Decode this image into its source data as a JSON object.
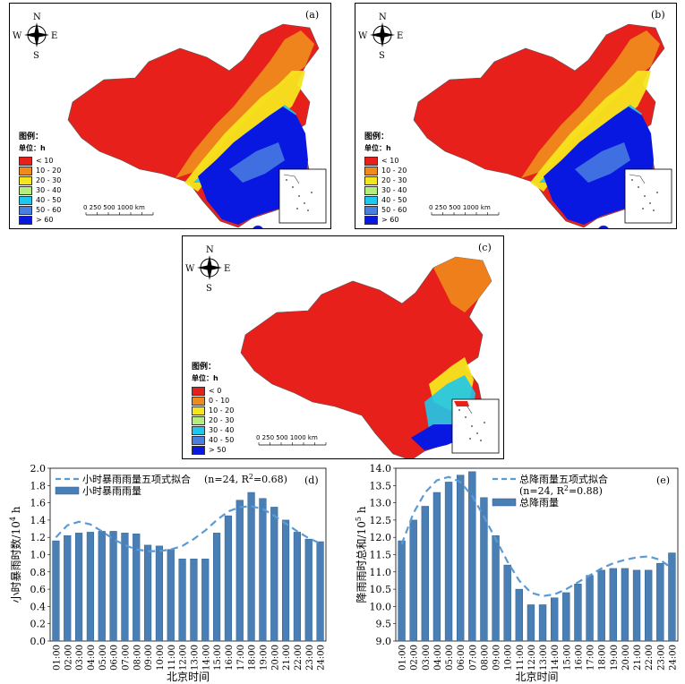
{
  "maps": [
    {
      "id": "a",
      "label": "(a)",
      "legend_title": "图例：",
      "unit": "单位：h",
      "legend": [
        {
          "text": "< 10",
          "color": "#e8201c"
        },
        {
          "text": "10 - 20",
          "color": "#f08a1c"
        },
        {
          "text": "20 - 30",
          "color": "#f5e51e"
        },
        {
          "text": "30 - 40",
          "color": "#b5ec7e"
        },
        {
          "text": "40 - 50",
          "color": "#1ec8ec"
        },
        {
          "text": "50 - 60",
          "color": "#4a7fe0"
        },
        {
          "text": "> 60",
          "color": "#0818e0"
        }
      ],
      "scale": "0  250 500      1000 km"
    },
    {
      "id": "b",
      "label": "(b)",
      "legend_title": "图例：",
      "unit": "单位：h",
      "legend": [
        {
          "text": "< 10",
          "color": "#e8201c"
        },
        {
          "text": "10 - 20",
          "color": "#f08a1c"
        },
        {
          "text": "20 - 30",
          "color": "#f5e51e"
        },
        {
          "text": "30 - 40",
          "color": "#b5ec7e"
        },
        {
          "text": "40 - 50",
          "color": "#1ec8ec"
        },
        {
          "text": "50 - 60",
          "color": "#4a7fe0"
        },
        {
          "text": "> 60",
          "color": "#0818e0"
        }
      ],
      "scale": "0  250 500      1000 km"
    },
    {
      "id": "c",
      "label": "(c)",
      "legend_title": "图例：",
      "unit": "单位：h",
      "legend": [
        {
          "text": "< 0",
          "color": "#e8201c"
        },
        {
          "text": "0 - 10",
          "color": "#f08a1c"
        },
        {
          "text": "10 - 20",
          "color": "#f5e51e"
        },
        {
          "text": "20 - 30",
          "color": "#b5ec7e"
        },
        {
          "text": "30 - 40",
          "color": "#1ec8ec"
        },
        {
          "text": "40 - 50",
          "color": "#4a7fe0"
        },
        {
          "text": "> 50",
          "color": "#0818e0"
        }
      ],
      "scale": "0  250 500      1000 km"
    }
  ],
  "compass": {
    "n": "N",
    "s": "S",
    "e": "E",
    "w": "W"
  },
  "chart_data": [
    {
      "type": "bar",
      "panel": "(d)",
      "categories": [
        "01:00",
        "02:00",
        "03:00",
        "04:00",
        "05:00",
        "06:00",
        "07:00",
        "08:00",
        "09:00",
        "10:00",
        "11:00",
        "12:00",
        "13:00",
        "14:00",
        "15:00",
        "16:00",
        "17:00",
        "18:00",
        "19:00",
        "20:00",
        "21:00",
        "22:00",
        "23:00",
        "24:00"
      ],
      "values": [
        1.16,
        1.22,
        1.25,
        1.26,
        1.27,
        1.27,
        1.25,
        1.24,
        1.11,
        1.1,
        1.06,
        0.95,
        0.95,
        0.95,
        1.25,
        1.45,
        1.63,
        1.72,
        1.65,
        1.55,
        1.4,
        1.26,
        1.18,
        1.15
      ],
      "fit_values": [
        1.2,
        1.34,
        1.38,
        1.35,
        1.27,
        1.18,
        1.11,
        1.06,
        1.04,
        1.04,
        1.06,
        1.1,
        1.18,
        1.28,
        1.4,
        1.5,
        1.55,
        1.56,
        1.53,
        1.45,
        1.36,
        1.27,
        1.19,
        1.13
      ],
      "series_bar": "小时暴雨雨量",
      "series_fit": "小时暴雨雨量五项式拟合",
      "fit_stats_pre": "(n=24, R",
      "fit_stats_sup": "2",
      "fit_stats_post": "=0.68)",
      "xlabel": "北京时间",
      "ylabel_main": "小时暴雨时数/10",
      "ylabel_sup": "4",
      "ylabel_unit": " h",
      "ylim": [
        0.0,
        2.0
      ],
      "yticks": [
        "0.0",
        "0.2",
        "0.4",
        "0.6",
        "0.8",
        "1.0",
        "1.2",
        "1.4",
        "1.6",
        "1.8",
        "2.0"
      ],
      "colors": {
        "bar": "#4a7fb5",
        "fit": "#5b9bd5"
      }
    },
    {
      "type": "bar",
      "panel": "(e)",
      "categories": [
        "01:00",
        "02:00",
        "03:00",
        "04:00",
        "05:00",
        "06:00",
        "07:00",
        "08:00",
        "09:00",
        "10:00",
        "11:00",
        "12:00",
        "13:00",
        "14:00",
        "15:00",
        "16:00",
        "17:00",
        "18:00",
        "19:00",
        "20:00",
        "21:00",
        "22:00",
        "23:00",
        "24:00"
      ],
      "values": [
        11.9,
        12.5,
        12.9,
        13.3,
        13.6,
        13.8,
        13.9,
        13.15,
        12.05,
        11.2,
        10.5,
        10.05,
        10.05,
        10.25,
        10.4,
        10.65,
        10.9,
        11.05,
        11.1,
        11.1,
        11.05,
        11.05,
        11.25,
        11.55
      ],
      "fit_values": [
        11.8,
        12.7,
        13.3,
        13.65,
        13.75,
        13.6,
        13.2,
        12.6,
        11.95,
        11.3,
        10.75,
        10.4,
        10.3,
        10.35,
        10.5,
        10.7,
        10.9,
        11.1,
        11.25,
        11.35,
        11.42,
        11.45,
        11.35,
        11.1
      ],
      "series_bar": "总降雨量",
      "series_fit": "总降雨量五项式拟合",
      "fit_stats_pre": "(n=24, R",
      "fit_stats_sup": "2",
      "fit_stats_post": "=0.88)",
      "xlabel": "北京时间",
      "ylabel_main": "降雨雨时总和/10",
      "ylabel_sup": "5",
      "ylabel_unit": " h",
      "ylim": [
        9.0,
        14.0
      ],
      "yticks": [
        "9.0",
        "9.5",
        "10.0",
        "10.5",
        "11.0",
        "11.5",
        "12.0",
        "12.5",
        "13.0",
        "13.5",
        "14.0"
      ],
      "colors": {
        "bar": "#4a7fb5",
        "fit": "#5b9bd5"
      }
    }
  ]
}
